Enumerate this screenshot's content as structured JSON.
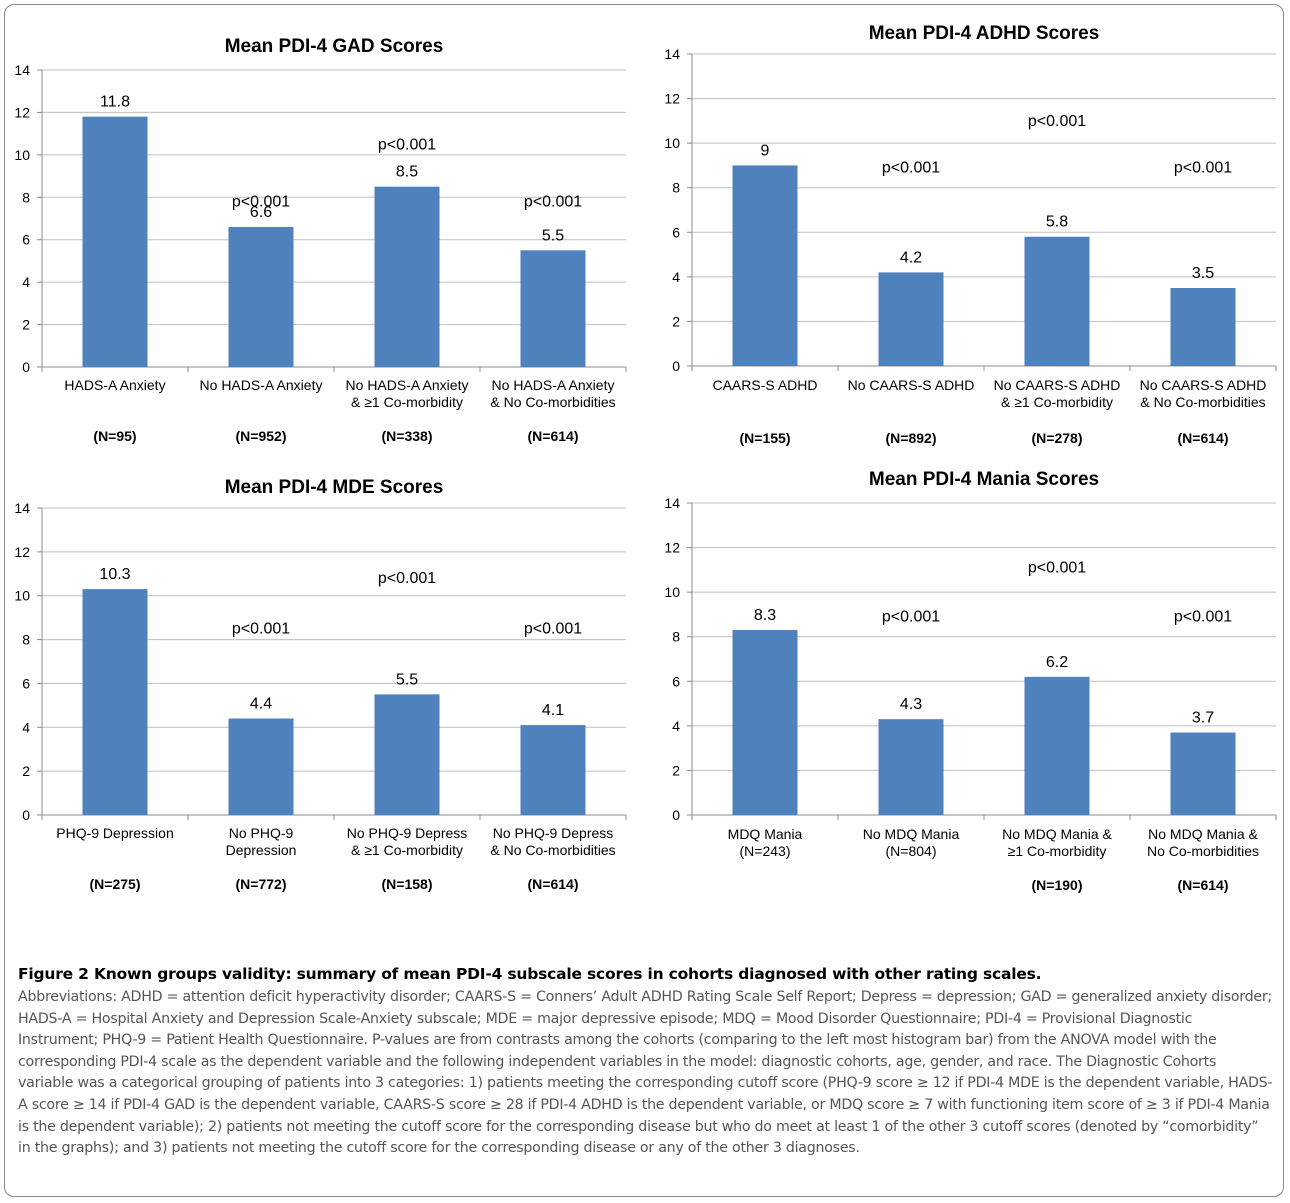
{
  "colors": {
    "bar": "#4f81bd",
    "grid": "#bfbfbf",
    "axis": "#8c8c8c",
    "text": "#000000"
  },
  "chart_data": [
    {
      "type": "bar",
      "title": "Mean PDI-4 GAD Scores",
      "categories": [
        [
          "HADS-A Anxiety"
        ],
        [
          "No HADS-A Anxiety"
        ],
        [
          "No HADS-A Anxiety",
          "& ≥1 Co-morbidity"
        ],
        [
          "No HADS-A Anxiety",
          "& No Co-morbidities"
        ]
      ],
      "n_labels": [
        "(N=95)",
        "(N=952)",
        "(N=338)",
        "(N=614)"
      ],
      "values": [
        11.8,
        6.6,
        8.5,
        5.5
      ],
      "value_labels": [
        "11.8",
        "6.6",
        "8.5",
        "5.5"
      ],
      "annotations": [
        {
          "text": "p<0.001",
          "category": 1,
          "y": 7.8
        },
        {
          "text": "p<0.001",
          "category": 2,
          "y": 10.5
        },
        {
          "text": "p<0.001",
          "category": 3,
          "y": 7.8
        }
      ],
      "yticks": [
        "0",
        "2",
        "4",
        "6",
        "8",
        "10",
        "12",
        "14"
      ],
      "ylim": [
        0,
        14
      ],
      "grid": true
    },
    {
      "type": "bar",
      "title": "Mean PDI-4 ADHD Scores",
      "categories": [
        [
          "CAARS-S ADHD"
        ],
        [
          "No CAARS-S ADHD"
        ],
        [
          "No CAARS-S ADHD",
          "& ≥1 Co-morbidity"
        ],
        [
          "No CAARS-S ADHD",
          "& No Co-morbidities"
        ]
      ],
      "n_labels": [
        "(N=155)",
        "(N=892)",
        "(N=278)",
        "(N=614)"
      ],
      "values": [
        9,
        4.2,
        5.8,
        3.5
      ],
      "value_labels": [
        "9",
        "4.2",
        "5.8",
        "3.5"
      ],
      "annotations": [
        {
          "text": "p<0.001",
          "category": 1,
          "y": 8.9
        },
        {
          "text": "p<0.001",
          "category": 2,
          "y": 11.0
        },
        {
          "text": "p<0.001",
          "category": 3,
          "y": 8.9
        }
      ],
      "yticks": [
        "0",
        "2",
        "4",
        "6",
        "8",
        "10",
        "12",
        "14"
      ],
      "ylim": [
        0,
        14
      ],
      "grid": true
    },
    {
      "type": "bar",
      "title": "Mean PDI-4 MDE Scores",
      "categories": [
        [
          "PHQ-9 Depression"
        ],
        [
          "No PHQ-9",
          "Depression"
        ],
        [
          "No PHQ-9 Depress",
          "& ≥1 Co-morbidity"
        ],
        [
          "No PHQ-9 Depress",
          "& No Co-morbidities"
        ]
      ],
      "n_labels": [
        "(N=275)",
        "(N=772)",
        "(N=158)",
        "(N=614)"
      ],
      "values": [
        10.3,
        4.4,
        5.5,
        4.1
      ],
      "value_labels": [
        "10.3",
        "4.4",
        "5.5",
        "4.1"
      ],
      "annotations": [
        {
          "text": "p<0.001",
          "category": 1,
          "y": 8.5
        },
        {
          "text": "p<0.001",
          "category": 2,
          "y": 10.8
        },
        {
          "text": "p<0.001",
          "category": 3,
          "y": 8.5
        }
      ],
      "yticks": [
        "0",
        "2",
        "4",
        "6",
        "8",
        "10",
        "12",
        "14"
      ],
      "ylim": [
        0,
        14
      ],
      "grid": true
    },
    {
      "type": "bar",
      "title": "Mean PDI-4 Mania Scores",
      "categories": [
        [
          "MDQ Mania",
          "(N=243)"
        ],
        [
          "No MDQ Mania",
          "(N=804)"
        ],
        [
          "No MDQ Mania &",
          "≥1 Co-morbidity"
        ],
        [
          "No MDQ Mania &",
          "No Co-morbidities"
        ]
      ],
      "n_labels": [
        "",
        "",
        "(N=190)",
        "(N=614)"
      ],
      "values": [
        8.3,
        4.3,
        6.2,
        3.7
      ],
      "value_labels": [
        "8.3",
        "4.3",
        "6.2",
        "3.7"
      ],
      "annotations": [
        {
          "text": "p<0.001",
          "category": 1,
          "y": 8.9
        },
        {
          "text": "p<0.001",
          "category": 2,
          "y": 11.1
        },
        {
          "text": "p<0.001",
          "category": 3,
          "y": 8.9
        }
      ],
      "yticks": [
        "0",
        "2",
        "4",
        "6",
        "8",
        "10",
        "12",
        "14"
      ],
      "ylim": [
        0,
        14
      ],
      "grid": true
    }
  ],
  "caption": {
    "title": "Figure 2 Known groups validity: summary of mean PDI-4 subscale scores in cohorts diagnosed with other rating scales.",
    "body": "Abbreviations: ADHD = attention deficit hyperactivity disorder; CAARS-S = Conners’ Adult ADHD Rating Scale Self Report; Depress = depression; GAD = generalized anxiety disorder; HADS-A = Hospital Anxiety and Depression Scale-Anxiety subscale; MDE = major depressive episode; MDQ = Mood Disorder Questionnaire; PDI-4 = Provisional Diagnostic Instrument; PHQ-9 = Patient Health Questionnaire. P-values are from contrasts among the cohorts (comparing to the left most histogram bar) from the ANOVA model with the corresponding PDI-4 scale as the dependent variable and the following independent variables in the model: diagnostic cohorts, age, gender, and race. The Diagnostic Cohorts variable was a categorical grouping of patients into 3 categories: 1) patients meeting the corresponding cutoff score (PHQ-9 score ≥ 12 if PDI-4 MDE is the dependent variable, HADS-A score ≥ 14 if PDI-4 GAD is the dependent variable, CAARS-S score ≥ 28 if PDI-4 ADHD is the dependent variable, or MDQ score ≥ 7 with functioning item score of ≥ 3 if PDI-4 Mania is the dependent variable); 2) patients not meeting the cutoff score for the corresponding disease but who do meet at least 1 of the other 3 cutoff scores (denoted by “comorbidity” in the graphs); and 3) patients not meeting the cutoff score for the corresponding disease or any of the other 3 diagnoses."
  }
}
